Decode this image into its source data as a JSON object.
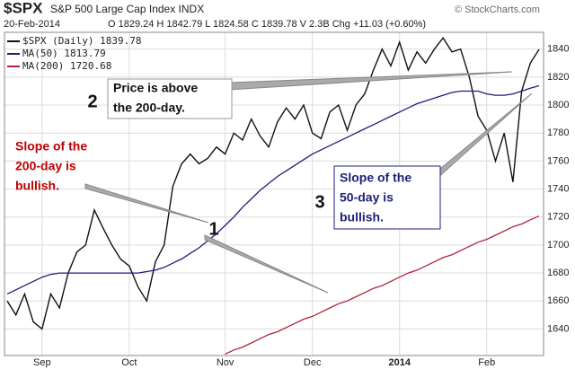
{
  "chart_data": {
    "type": "line",
    "symbol": "$SPX",
    "title": "S&P 500 Large Cap Index INDX",
    "date": "20-Feb-2014",
    "quote": "O 1829.24 H 1842.79 L 1824.58 C 1839.78 V 2.3B Chg +11.03 (+0.60%)",
    "source": "© StockCharts.com",
    "categories": [
      null,
      null,
      null,
      null,
      "Sep",
      null,
      null,
      null,
      null,
      null,
      null,
      null,
      null,
      null,
      "Oct",
      null,
      null,
      null,
      null,
      null,
      null,
      null,
      null,
      null,
      null,
      "Nov",
      null,
      null,
      null,
      null,
      null,
      null,
      null,
      null,
      null,
      "Dec",
      null,
      null,
      null,
      null,
      null,
      null,
      null,
      null,
      null,
      "2014",
      null,
      null,
      null,
      null,
      null,
      null,
      null,
      null,
      null,
      "Feb",
      null,
      null,
      null,
      null,
      null,
      null
    ],
    "series": [
      {
        "name": "$SPX (Daily) 1839.78",
        "color": "#111111",
        "values": [
          1660,
          1650,
          1665,
          1645,
          1640,
          1665,
          1655,
          1680,
          1695,
          1700,
          1725,
          1712,
          1700,
          1690,
          1685,
          1670,
          1660,
          1688,
          1700,
          1742,
          1758,
          1765,
          1758,
          1762,
          1770,
          1765,
          1780,
          1775,
          1790,
          1778,
          1770,
          1788,
          1798,
          1790,
          1800,
          1780,
          1776,
          1795,
          1800,
          1782,
          1800,
          1808,
          1825,
          1840,
          1828,
          1845,
          1825,
          1838,
          1830,
          1840,
          1848,
          1838,
          1840,
          1820,
          1792,
          1782,
          1760,
          1780,
          1745,
          1810,
          1830,
          1839.78
        ]
      },
      {
        "name": "MA(50) 1813.79",
        "color": "#1c1f78",
        "values": [
          1665,
          1668,
          1671,
          1674,
          1677,
          1679,
          1680,
          1680,
          1680,
          1680,
          1680,
          1680,
          1680,
          1680,
          1680,
          1680,
          1681,
          1682,
          1684,
          1687,
          1690,
          1694,
          1698,
          1703,
          1708,
          1714,
          1720,
          1727,
          1733,
          1739,
          1744,
          1749,
          1753,
          1757,
          1761,
          1765,
          1768,
          1771,
          1774,
          1777,
          1780,
          1783,
          1786,
          1789,
          1792,
          1795,
          1798,
          1801,
          1803,
          1805,
          1807,
          1809,
          1810,
          1810,
          1810,
          1808,
          1807,
          1807,
          1808,
          1810,
          1812,
          1813.79
        ]
      },
      {
        "name": "MA(200) 1720.68",
        "color": "#b3213c",
        "values": [
          null,
          null,
          null,
          null,
          null,
          null,
          null,
          null,
          null,
          null,
          null,
          null,
          null,
          null,
          null,
          null,
          null,
          null,
          null,
          null,
          null,
          null,
          null,
          null,
          null,
          1622,
          1625,
          1627,
          1630,
          1633,
          1636,
          1638,
          1641,
          1644,
          1647,
          1649,
          1652,
          1655,
          1658,
          1660,
          1663,
          1666,
          1669,
          1671,
          1674,
          1677,
          1680,
          1682,
          1685,
          1688,
          1691,
          1693,
          1696,
          1699,
          1702,
          1704,
          1707,
          1710,
          1713,
          1715,
          1718,
          1720.68
        ]
      }
    ],
    "ylim": [
      1621,
      1852
    ],
    "yticks": [
      1640,
      1660,
      1680,
      1700,
      1720,
      1740,
      1760,
      1780,
      1800,
      1820,
      1840
    ],
    "grid": true,
    "annotations": {
      "price": {
        "number": "2",
        "lines": [
          "Price is above",
          "the 200-day."
        ]
      },
      "ma200": {
        "number": "1",
        "lines": [
          "Slope of the",
          "200-day is",
          "bullish."
        ]
      },
      "ma50": {
        "number": "3",
        "lines": [
          "Slope of the",
          "50-day is",
          "bullish."
        ]
      }
    }
  }
}
